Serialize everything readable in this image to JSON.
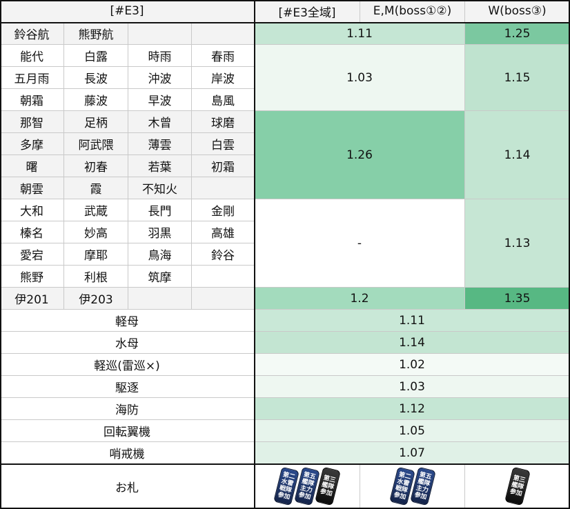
{
  "header": {
    "left": "[#E3]",
    "all": "[#E3全域]",
    "em": "E,M(boss①②)",
    "w": "W(boss③)"
  },
  "ships": [
    [
      "鈴谷航",
      "熊野航",
      "",
      ""
    ],
    [
      "能代",
      "白露",
      "時雨",
      "春雨"
    ],
    [
      "五月雨",
      "長波",
      "沖波",
      "岸波"
    ],
    [
      "朝霜",
      "藤波",
      "早波",
      "島風"
    ],
    [
      "那智",
      "足柄",
      "木曾",
      "球磨"
    ],
    [
      "多摩",
      "阿武隈",
      "薄雲",
      "白雲"
    ],
    [
      "曙",
      "初春",
      "若葉",
      "初霜"
    ],
    [
      "朝雲",
      "霞",
      "不知火",
      ""
    ],
    [
      "大和",
      "武蔵",
      "長門",
      "金剛"
    ],
    [
      "榛名",
      "妙高",
      "羽黒",
      "高雄"
    ],
    [
      "愛宕",
      "摩耶",
      "鳥海",
      "鈴谷"
    ],
    [
      "熊野",
      "利根",
      "筑摩",
      ""
    ],
    [
      "伊201",
      "伊203",
      "",
      ""
    ]
  ],
  "groups": [
    {
      "em": "1.11",
      "w": "1.25",
      "em_color": "#c5e6d4",
      "w_color": "#7bc8a0"
    },
    {
      "em": "1.03",
      "w": "1.15",
      "em_color": "#eef7f1",
      "w_color": "#bfe3cf"
    },
    {
      "em": "1.26",
      "w": "1.14",
      "em_color": "#86cfa8",
      "w_color": "#c3e5d2"
    },
    {
      "em": "-",
      "w": "1.13",
      "em_color": "#ffffff",
      "w_color": "#c6e6d4"
    },
    {
      "em": "1.2",
      "w": "1.35",
      "em_color": "#a3dbbd",
      "w_color": "#57b883"
    }
  ],
  "types": [
    {
      "label": "軽母",
      "value": "1.11",
      "color": "#c9e8d7"
    },
    {
      "label": "水母",
      "value": "1.14",
      "color": "#c3e5d2"
    },
    {
      "label": "軽巡(雷巡×)",
      "value": "1.02",
      "color": "#f4faf6"
    },
    {
      "label": "駆逐",
      "value": "1.03",
      "color": "#eef7f1"
    },
    {
      "label": "海防",
      "value": "1.12",
      "color": "#c5e6d4"
    },
    {
      "label": "回転翼機",
      "value": "1.05",
      "color": "#e7f4ec"
    },
    {
      "label": "哨戒機",
      "value": "1.07",
      "color": "#e0f1e7"
    }
  ],
  "tags": {
    "label": "お札",
    "all": [
      {
        "name": "second-fleet-tag",
        "text": [
          "第二",
          "水雷",
          "戦隊",
          "参加"
        ],
        "style": "navy"
      },
      {
        "name": "fifth-fleet-main-tag",
        "text": [
          "第五",
          "艦隊",
          "主力",
          "参加"
        ],
        "style": "navy"
      },
      {
        "name": "third-fleet-tag",
        "text": [
          "第三",
          "艦隊",
          "参加"
        ],
        "style": "black"
      }
    ],
    "em": [
      {
        "name": "second-fleet-tag",
        "text": [
          "第二",
          "水雷",
          "戦隊",
          "参加"
        ],
        "style": "navy"
      },
      {
        "name": "fifth-fleet-main-tag",
        "text": [
          "第五",
          "艦隊",
          "主力",
          "参加"
        ],
        "style": "navy"
      }
    ],
    "w": [
      {
        "name": "third-fleet-tag",
        "text": [
          "第三",
          "艦隊",
          "参加"
        ],
        "style": "black"
      }
    ]
  }
}
